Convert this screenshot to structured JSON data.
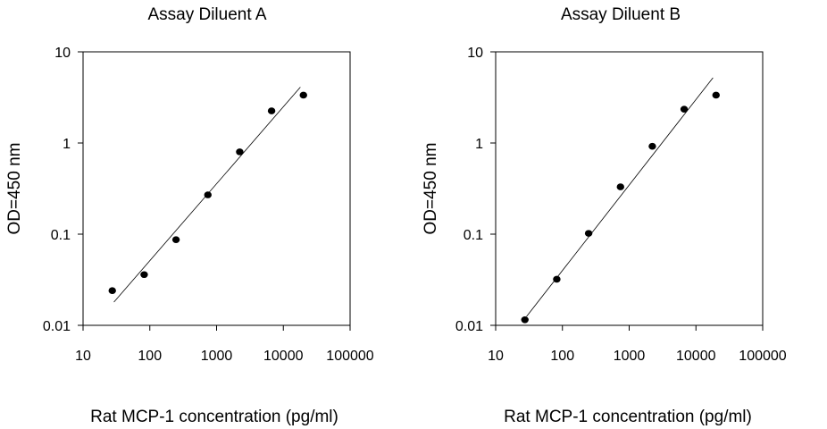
{
  "chart_data": [
    {
      "type": "scatter",
      "title": "Assay Diluent A",
      "xlabel": "Rat MCP-1 concentration (pg/ml)",
      "ylabel": "OD=450 nm",
      "x_scale": "log",
      "y_scale": "log",
      "xlim": [
        10,
        100000
      ],
      "ylim": [
        0.01,
        10
      ],
      "x_ticks": [
        "10",
        "100",
        "1000",
        "10000",
        "100000"
      ],
      "y_ticks": [
        "0.01",
        "0.1",
        "1",
        "10"
      ],
      "grid": false,
      "points": [
        {
          "x": 27.4,
          "y": 0.024
        },
        {
          "x": 82.3,
          "y": 0.036
        },
        {
          "x": 247,
          "y": 0.087
        },
        {
          "x": 741,
          "y": 0.27
        },
        {
          "x": 2222,
          "y": 0.8
        },
        {
          "x": 6667,
          "y": 2.25
        },
        {
          "x": 20000,
          "y": 3.35
        }
      ],
      "fit_line": [
        {
          "x": 29,
          "y": 0.018
        },
        {
          "x": 18000,
          "y": 4.1
        }
      ]
    },
    {
      "type": "scatter",
      "title": "Assay Diluent B",
      "xlabel": "Rat MCP-1 concentration (pg/ml)",
      "ylabel": "OD=450 nm",
      "x_scale": "log",
      "y_scale": "log",
      "xlim": [
        10,
        100000
      ],
      "ylim": [
        0.01,
        10
      ],
      "x_ticks": [
        "10",
        "100",
        "1000",
        "10000",
        "100000"
      ],
      "y_ticks": [
        "0.01",
        "0.1",
        "1",
        "10"
      ],
      "grid": false,
      "points": [
        {
          "x": 27.4,
          "y": 0.0115
        },
        {
          "x": 82.3,
          "y": 0.032
        },
        {
          "x": 247,
          "y": 0.102
        },
        {
          "x": 741,
          "y": 0.33
        },
        {
          "x": 2222,
          "y": 0.92
        },
        {
          "x": 6667,
          "y": 2.35
        },
        {
          "x": 20000,
          "y": 3.35
        }
      ],
      "fit_line": [
        {
          "x": 29,
          "y": 0.0125
        },
        {
          "x": 18000,
          "y": 5.2
        }
      ]
    }
  ]
}
